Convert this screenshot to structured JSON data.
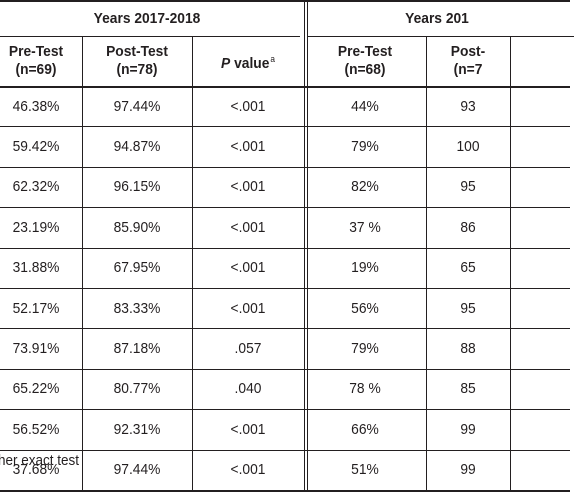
{
  "table": {
    "group_headers": [
      "Years 2017-2018",
      "Years 201"
    ],
    "columns": [
      {
        "key": "pre1",
        "line1": "Pre-Test",
        "line2": "(n=69)"
      },
      {
        "key": "post1",
        "line1": "Post-Test",
        "line2": "(n=78)"
      },
      {
        "key": "p1",
        "line1": "P",
        "line2": " value",
        "sup": "a"
      },
      {
        "key": "pre2",
        "line1": "Pre-Test",
        "line2": "(n=68)"
      },
      {
        "key": "post2",
        "line1": "Post-",
        "line2": "(n=7"
      }
    ],
    "rows": [
      [
        "46.38%",
        "97.44%",
        "<.001",
        "44%",
        "93"
      ],
      [
        "59.42%",
        "94.87%",
        "<.001",
        "79%",
        "100"
      ],
      [
        "62.32%",
        "96.15%",
        "<.001",
        "82%",
        "95"
      ],
      [
        "23.19%",
        "85.90%",
        "<.001",
        "37 %",
        "86"
      ],
      [
        "31.88%",
        "67.95%",
        "<.001",
        "19%",
        "65"
      ],
      [
        "52.17%",
        "83.33%",
        "<.001",
        "56%",
        "95"
      ],
      [
        "73.91%",
        "87.18%",
        ".057",
        "79%",
        "88"
      ],
      [
        "65.22%",
        "80.77%",
        ".040",
        "78 %",
        "85"
      ],
      [
        "56.52%",
        "92.31%",
        "<.001",
        "66%",
        "99"
      ],
      [
        "37.68%",
        "97.44%",
        "<.001",
        "51%",
        "99"
      ]
    ]
  },
  "footnote": "her exact test"
}
